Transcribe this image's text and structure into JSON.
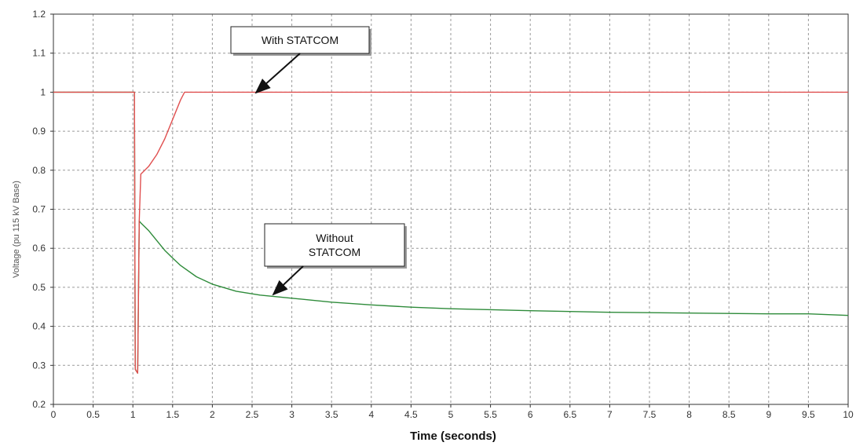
{
  "chart_data": {
    "type": "line",
    "title": "",
    "xlabel": "Time (seconds)",
    "ylabel": "Voltage (pu 115 kV Base)",
    "xlim": [
      0,
      10
    ],
    "ylim": [
      0.2,
      1.2
    ],
    "x_ticks": [
      "0",
      "0.5",
      "1",
      "1.5",
      "2",
      "2.5",
      "3",
      "3.5",
      "4",
      "4.5",
      "5",
      "5.5",
      "6",
      "6.5",
      "7",
      "7.5",
      "8",
      "8.5",
      "9",
      "9.5",
      "10"
    ],
    "y_ticks": [
      "0.2",
      "0.3",
      "0.4",
      "0.5",
      "0.6",
      "0.7",
      "0.8",
      "0.9",
      "1",
      "1.1",
      "1.2"
    ],
    "grid": true,
    "grid_style": "dashed",
    "legend": "none",
    "series": [
      {
        "color": "#e05050",
        "x": [
          0,
          1.02,
          1.03,
          1.06,
          1.08,
          1.1,
          1.15,
          1.2,
          1.3,
          1.4,
          1.5,
          1.6,
          1.65,
          1.7,
          2,
          3,
          4,
          5,
          6,
          7,
          8,
          9,
          10
        ],
        "y": [
          1.0,
          1.0,
          0.29,
          0.28,
          0.67,
          0.79,
          0.8,
          0.81,
          0.84,
          0.88,
          0.93,
          0.98,
          1.0,
          1.0,
          1.0,
          1.0,
          1.0,
          1.0,
          1.0,
          1.0,
          1.0,
          1.0,
          1.0
        ]
      },
      {
        "color": "#2e8b3a",
        "x": [
          0,
          1.02,
          1.03,
          1.06,
          1.08,
          1.1,
          1.2,
          1.3,
          1.4,
          1.5,
          1.6,
          1.8,
          2.0,
          2.3,
          2.6,
          3.0,
          3.5,
          4.0,
          4.5,
          5.0,
          6.0,
          7.0,
          8.0,
          9.0,
          9.5,
          10
        ],
        "y": [
          1.0,
          1.0,
          0.29,
          0.28,
          0.67,
          0.665,
          0.645,
          0.62,
          0.595,
          0.575,
          0.556,
          0.527,
          0.508,
          0.49,
          0.48,
          0.472,
          0.462,
          0.455,
          0.449,
          0.445,
          0.44,
          0.436,
          0.434,
          0.432,
          0.432,
          0.428
        ]
      }
    ],
    "annotations": [
      {
        "lines": [
          "With STATCOM"
        ]
      },
      {
        "lines": [
          "Without",
          "STATCOM"
        ]
      }
    ]
  }
}
